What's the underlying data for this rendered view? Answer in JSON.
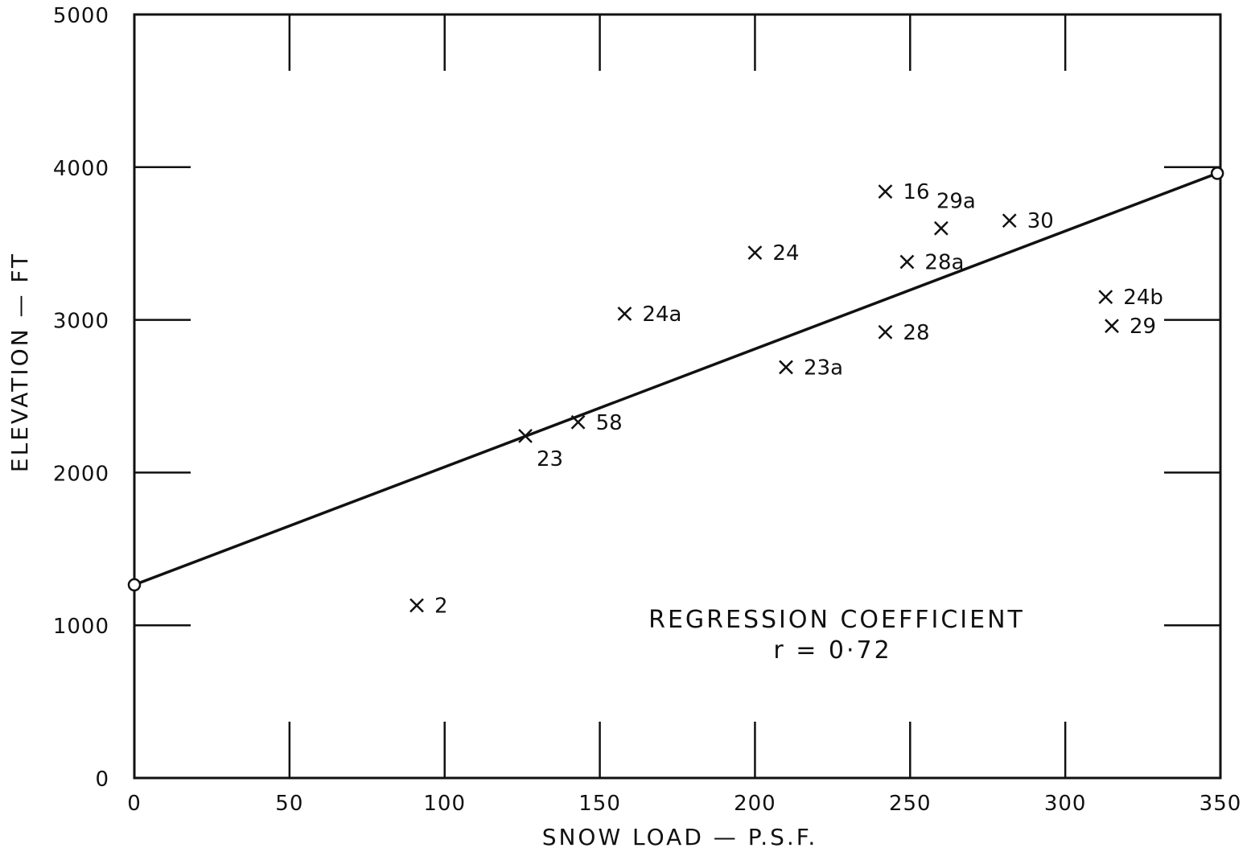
{
  "chart_data": {
    "type": "scatter",
    "title": "",
    "xlabel": "SNOW LOAD — P.S.F.",
    "ylabel": "ELEVATION — FT",
    "xlim": [
      0,
      350
    ],
    "ylim": [
      0,
      5000
    ],
    "x_ticks": [
      0,
      50,
      100,
      150,
      200,
      250,
      300,
      350
    ],
    "y_ticks": [
      0,
      1000,
      2000,
      3000,
      4000,
      5000
    ],
    "x_tick_labels": [
      "0",
      "50",
      "100",
      "150",
      "200",
      "250",
      "300",
      "350"
    ],
    "y_tick_labels": [
      "0",
      "1000",
      "2000",
      "3000",
      "4000",
      "5000"
    ],
    "grid": false,
    "points": [
      {
        "label": "2",
        "x": 91,
        "y": 1130
      },
      {
        "label": "23",
        "x": 126,
        "y": 2240
      },
      {
        "label": "58",
        "x": 143,
        "y": 2330
      },
      {
        "label": "24a",
        "x": 158,
        "y": 3040
      },
      {
        "label": "24",
        "x": 200,
        "y": 3440
      },
      {
        "label": "23a",
        "x": 210,
        "y": 2690
      },
      {
        "label": "16",
        "x": 242,
        "y": 3840
      },
      {
        "label": "28",
        "x": 242,
        "y": 2920
      },
      {
        "label": "28a",
        "x": 249,
        "y": 3380
      },
      {
        "label": "29a",
        "x": 260,
        "y": 3600
      },
      {
        "label": "30",
        "x": 282,
        "y": 3650
      },
      {
        "label": "24b",
        "x": 313,
        "y": 3150
      },
      {
        "label": "29",
        "x": 315,
        "y": 2960
      }
    ],
    "regression_line": {
      "x": [
        0,
        349
      ],
      "y": [
        1265,
        3960
      ]
    },
    "annotation": {
      "line1": "REGRESSION COEFFICIENT",
      "line2": "r = 0·72"
    }
  }
}
